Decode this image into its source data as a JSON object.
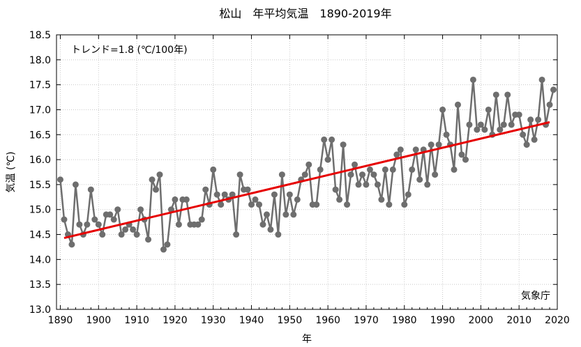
{
  "chart_data": {
    "type": "line",
    "title": "松山　年平均気温　1890-2019年",
    "xlabel": "年",
    "ylabel": "気温 (℃)",
    "annotation": "トレンド=1.8 (℃/100年)",
    "source": "気象庁",
    "xlim": [
      1889,
      2020
    ],
    "ylim": [
      13.0,
      18.5
    ],
    "xticks": [
      1890,
      1900,
      1910,
      1920,
      1930,
      1940,
      1950,
      1960,
      1970,
      1980,
      1990,
      2000,
      2010,
      2020
    ],
    "yticks": [
      13.0,
      13.5,
      14.0,
      14.5,
      15.0,
      15.5,
      16.0,
      16.5,
      17.0,
      17.5,
      18.0,
      18.5
    ],
    "grid": true,
    "series": [
      {
        "name": "年平均気温",
        "color": "#6e6e6e",
        "x_start": 1890,
        "values": [
          15.6,
          14.8,
          14.5,
          14.3,
          15.5,
          14.7,
          14.5,
          14.7,
          15.4,
          14.8,
          14.7,
          14.5,
          14.9,
          14.9,
          14.8,
          15.0,
          14.5,
          14.6,
          14.7,
          14.6,
          14.5,
          15.0,
          14.8,
          14.4,
          15.6,
          15.4,
          15.7,
          14.2,
          14.3,
          15.0,
          15.2,
          14.7,
          15.2,
          15.2,
          14.7,
          14.7,
          14.7,
          14.8,
          15.4,
          15.1,
          15.8,
          15.3,
          15.1,
          15.3,
          15.2,
          15.3,
          14.5,
          15.7,
          15.4,
          15.4,
          15.1,
          15.2,
          15.1,
          14.7,
          14.9,
          14.6,
          15.3,
          14.5,
          15.7,
          14.9,
          15.3,
          14.9,
          15.2,
          15.6,
          15.7,
          15.9,
          15.1,
          15.1,
          15.8,
          16.4,
          16.0,
          16.4,
          15.4,
          15.2,
          16.3,
          15.1,
          15.7,
          15.9,
          15.5,
          15.7,
          15.5,
          15.8,
          15.7,
          15.5,
          15.2,
          15.8,
          15.1,
          15.8,
          16.1,
          16.2,
          15.1,
          15.3,
          15.8,
          16.2,
          15.6,
          16.2,
          15.5,
          16.3,
          15.7,
          16.3,
          17.0,
          16.5,
          16.3,
          15.8,
          17.1,
          16.1,
          16.0,
          16.7,
          17.6,
          16.6,
          16.7,
          16.6,
          17.0,
          16.5,
          17.3,
          16.6,
          16.7,
          17.3,
          16.7,
          16.9,
          16.9,
          16.5,
          16.3,
          16.8,
          16.4,
          16.8,
          17.6,
          16.7,
          17.1,
          17.4
        ]
      },
      {
        "name": "トレンド",
        "color": "#e60000",
        "type": "trend_line",
        "points": [
          [
            1891,
            14.43
          ],
          [
            2018,
            16.75
          ]
        ]
      }
    ]
  }
}
